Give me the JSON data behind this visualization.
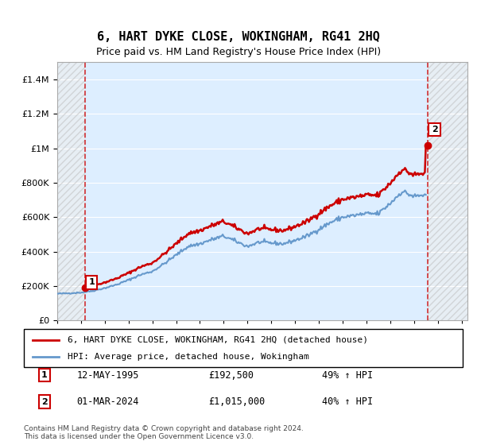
{
  "title": "6, HART DYKE CLOSE, WOKINGHAM, RG41 2HQ",
  "subtitle": "Price paid vs. HM Land Registry's House Price Index (HPI)",
  "legend_line1": "6, HART DYKE CLOSE, WOKINGHAM, RG41 2HQ (detached house)",
  "legend_line2": "HPI: Average price, detached house, Wokingham",
  "annotation1_label": "1",
  "annotation1_date": "12-MAY-1995",
  "annotation1_price": "£192,500",
  "annotation1_hpi": "49% ↑ HPI",
  "annotation2_label": "2",
  "annotation2_date": "01-MAR-2024",
  "annotation2_price": "£1,015,000",
  "annotation2_hpi": "40% ↑ HPI",
  "footer": "Contains HM Land Registry data © Crown copyright and database right 2024.\nThis data is licensed under the Open Government Licence v3.0.",
  "property_color": "#cc0000",
  "hpi_color": "#6699cc",
  "hatch_color": "#cccccc",
  "bg_plot": "#ddeeff",
  "bg_hatch": "#e8e8e8",
  "ylim": [
    0,
    1500000
  ],
  "xlim_start": 1993.0,
  "xlim_end": 2027.5
}
